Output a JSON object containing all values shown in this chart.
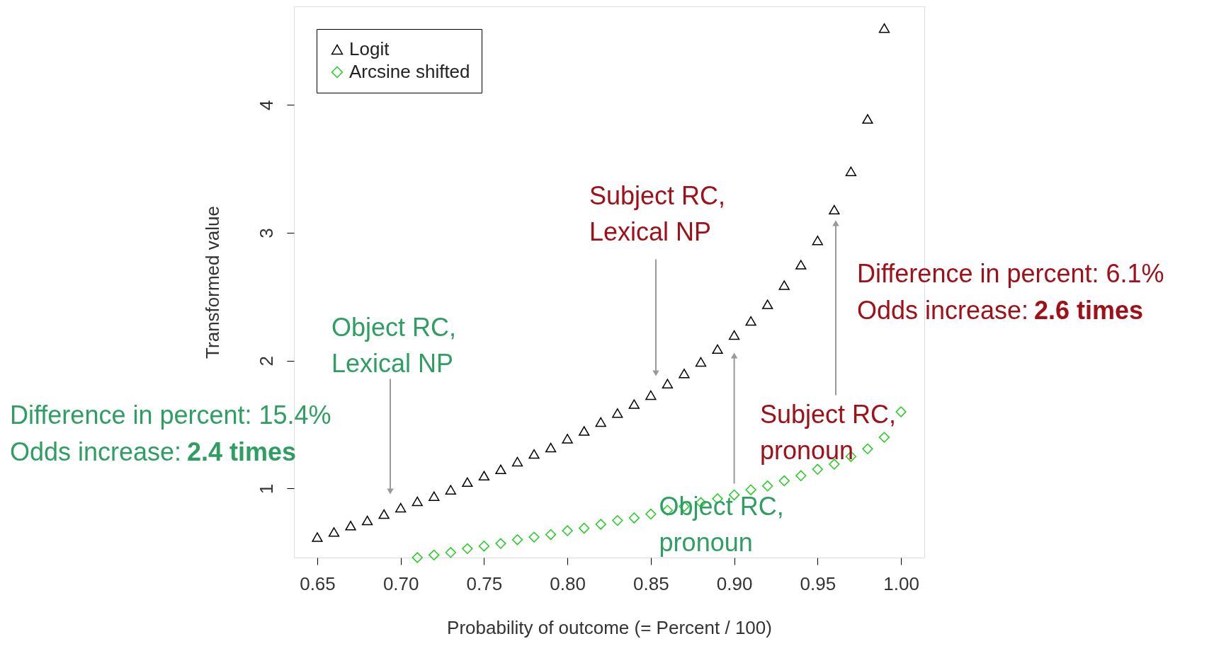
{
  "chart_data": {
    "type": "scatter",
    "xlabel": "Probability of outcome (= Percent / 100)",
    "ylabel": "Transformed value",
    "xlim": [
      0.636,
      1.014
    ],
    "ylim": [
      0.46,
      4.77
    ],
    "xticks": [
      {
        "value": 0.65,
        "label": "0.65"
      },
      {
        "value": 0.7,
        "label": "0.70"
      },
      {
        "value": 0.75,
        "label": "0.75"
      },
      {
        "value": 0.8,
        "label": "0.80"
      },
      {
        "value": 0.85,
        "label": "0.85"
      },
      {
        "value": 0.9,
        "label": "0.90"
      },
      {
        "value": 0.95,
        "label": "0.95"
      },
      {
        "value": 1.0,
        "label": "1.00"
      }
    ],
    "yticks": [
      1,
      2,
      3,
      4
    ],
    "grid": false,
    "legend": "top left",
    "series": [
      {
        "name": "Logit",
        "color": "#000000",
        "marker": "triangle",
        "x": [
          0.65,
          0.66,
          0.67,
          0.68,
          0.69,
          0.7,
          0.71,
          0.72,
          0.73,
          0.74,
          0.75,
          0.76,
          0.77,
          0.78,
          0.79,
          0.8,
          0.81,
          0.82,
          0.83,
          0.84,
          0.85,
          0.86,
          0.87,
          0.88,
          0.89,
          0.9,
          0.91,
          0.92,
          0.93,
          0.94,
          0.95,
          0.96,
          0.97,
          0.98,
          0.99
        ],
        "values": [
          0.62,
          0.66,
          0.71,
          0.75,
          0.8,
          0.85,
          0.9,
          0.94,
          0.99,
          1.05,
          1.1,
          1.15,
          1.21,
          1.27,
          1.32,
          1.39,
          1.45,
          1.52,
          1.59,
          1.66,
          1.73,
          1.82,
          1.9,
          1.99,
          2.09,
          2.2,
          2.31,
          2.44,
          2.59,
          2.75,
          2.94,
          3.18,
          3.48,
          3.89,
          4.6
        ]
      },
      {
        "name": "Arcsine shifted",
        "color": "#22cc22",
        "marker": "diamond",
        "x": [
          0.71,
          0.72,
          0.73,
          0.74,
          0.75,
          0.76,
          0.77,
          0.78,
          0.79,
          0.8,
          0.81,
          0.82,
          0.83,
          0.84,
          0.85,
          0.86,
          0.87,
          0.88,
          0.89,
          0.9,
          0.91,
          0.92,
          0.93,
          0.94,
          0.95,
          0.96,
          0.97,
          0.98,
          0.99,
          1.0
        ],
        "values": [
          0.46,
          0.48,
          0.5,
          0.53,
          0.55,
          0.57,
          0.6,
          0.62,
          0.64,
          0.67,
          0.69,
          0.72,
          0.75,
          0.77,
          0.8,
          0.83,
          0.86,
          0.89,
          0.92,
          0.95,
          0.99,
          1.02,
          1.06,
          1.1,
          1.15,
          1.19,
          1.25,
          1.31,
          1.4,
          1.6
        ]
      }
    ],
    "annotations": [
      "Object RC,\nLexical NP",
      "Difference in percent: 15.4%",
      "Odds increase: 2.4 times",
      "Subject RC,\nLexical NP",
      "Difference in percent: 6.1%",
      "Odds increase: 2.6 times",
      "Object RC,\npronoun",
      "Subject RC,\npronoun"
    ]
  }
}
